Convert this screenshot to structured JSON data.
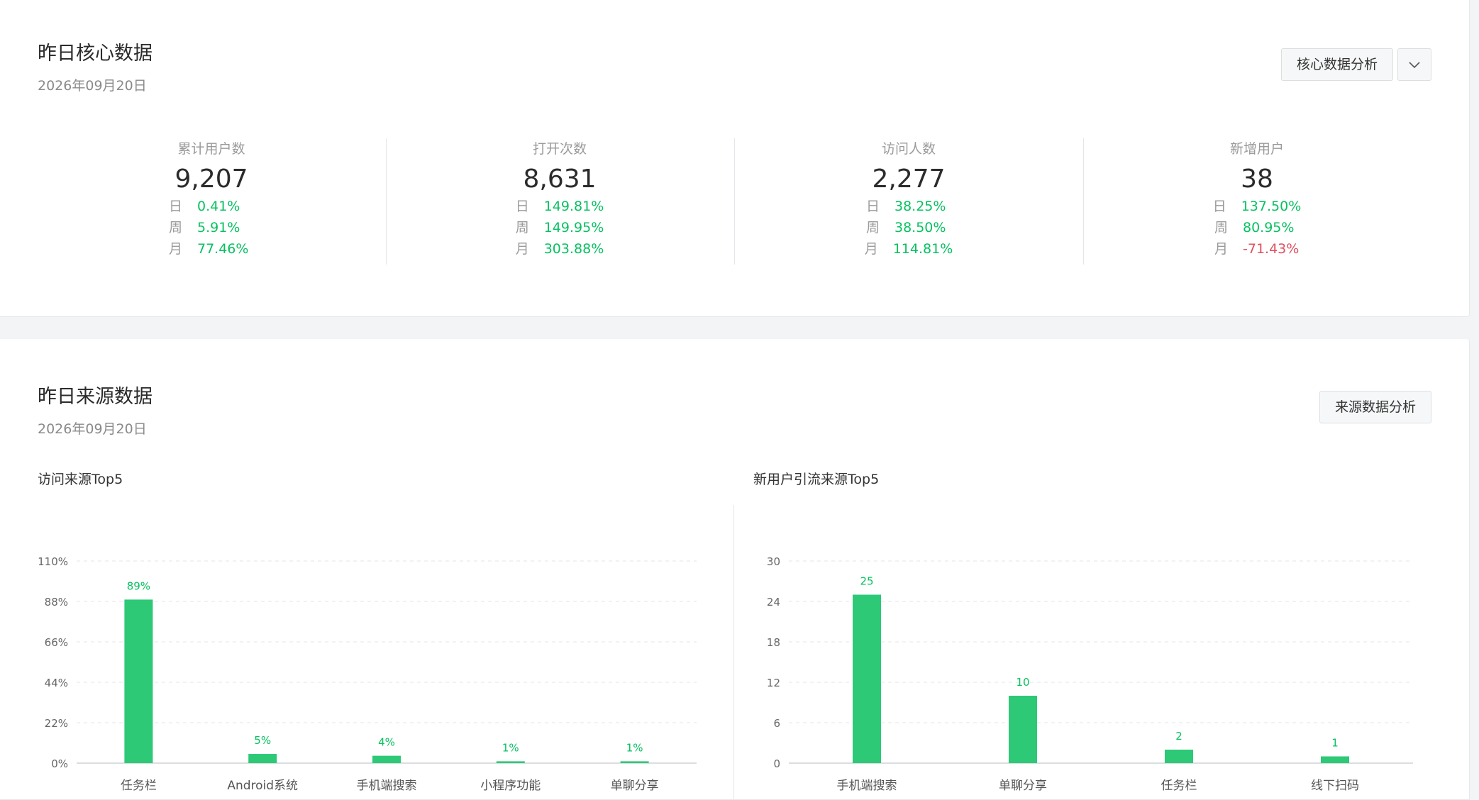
{
  "core": {
    "title": "昨日核心数据",
    "date": "2026年09月20日",
    "analysis_button": "核心数据分析",
    "stats": [
      {
        "label": "累计用户数",
        "value": "9,207",
        "rows": [
          {
            "k": "日",
            "v": "0.41%",
            "trend": "up"
          },
          {
            "k": "周",
            "v": "5.91%",
            "trend": "up"
          },
          {
            "k": "月",
            "v": "77.46%",
            "trend": "up"
          }
        ]
      },
      {
        "label": "打开次数",
        "value": "8,631",
        "rows": [
          {
            "k": "日",
            "v": "149.81%",
            "trend": "up"
          },
          {
            "k": "周",
            "v": "149.95%",
            "trend": "up"
          },
          {
            "k": "月",
            "v": "303.88%",
            "trend": "up"
          }
        ]
      },
      {
        "label": "访问人数",
        "value": "2,277",
        "rows": [
          {
            "k": "日",
            "v": "38.25%",
            "trend": "up"
          },
          {
            "k": "周",
            "v": "38.50%",
            "trend": "up"
          },
          {
            "k": "月",
            "v": "114.81%",
            "trend": "up"
          }
        ]
      },
      {
        "label": "新增用户",
        "value": "38",
        "rows": [
          {
            "k": "日",
            "v": "137.50%",
            "trend": "up"
          },
          {
            "k": "周",
            "v": "80.95%",
            "trend": "up"
          },
          {
            "k": "月",
            "v": "-71.43%",
            "trend": "down"
          }
        ]
      }
    ]
  },
  "source": {
    "title": "昨日来源数据",
    "date": "2026年09月20日",
    "analysis_button": "来源数据分析"
  },
  "colors": {
    "bar": "#2dc976",
    "positive": "#07c160",
    "negative": "#e0505d",
    "grid": "#e3e5e8",
    "axis": "#cfd2d6"
  },
  "icons": {
    "dropdown": "chevron-down-icon"
  },
  "chart_data": [
    {
      "type": "bar",
      "title": "访问来源Top5",
      "categories": [
        "任务栏",
        "Android系统",
        "手机端搜索",
        "小程序功能",
        "单聊分享"
      ],
      "values": [
        89,
        5,
        4,
        1,
        1
      ],
      "value_labels": [
        "89%",
        "5%",
        "4%",
        "1%",
        "1%"
      ],
      "yticks": [
        0,
        22,
        44,
        66,
        88,
        110
      ],
      "ytick_labels": [
        "0%",
        "22%",
        "44%",
        "66%",
        "88%",
        "110%"
      ],
      "ylim": [
        0,
        110
      ],
      "grid": true
    },
    {
      "type": "bar",
      "title": "新用户引流来源Top5",
      "categories": [
        "手机端搜索",
        "单聊分享",
        "任务栏",
        "线下扫码"
      ],
      "values": [
        25,
        10,
        2,
        1
      ],
      "value_labels": [
        "25",
        "10",
        "2",
        "1"
      ],
      "yticks": [
        0,
        6,
        12,
        18,
        24,
        30
      ],
      "ytick_labels": [
        "0",
        "6",
        "12",
        "18",
        "24",
        "30"
      ],
      "ylim": [
        0,
        30
      ],
      "grid": true
    }
  ]
}
